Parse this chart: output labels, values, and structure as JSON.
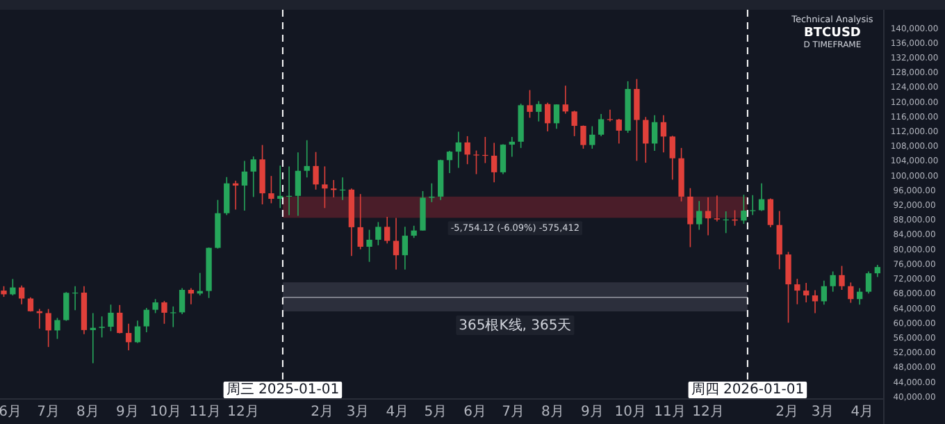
{
  "chart_data": {
    "type": "candlestick",
    "title": "BTCUSD",
    "subtitle": "Technical Analysis",
    "x": [
      "2024-05-27",
      "2024-06-03",
      "2024-06-10",
      "2024-06-17",
      "2024-06-24",
      "2024-07-01",
      "2024-07-08",
      "2024-07-15",
      "2024-07-22",
      "2024-07-29",
      "2024-08-05",
      "2024-08-12",
      "2024-08-19",
      "2024-08-26",
      "2024-09-02",
      "2024-09-09",
      "2024-09-16",
      "2024-09-23",
      "2024-09-30",
      "2024-10-07",
      "2024-10-14",
      "2024-10-21",
      "2024-10-28",
      "2024-11-04",
      "2024-11-11",
      "2024-11-18",
      "2024-11-25",
      "2024-12-02",
      "2024-12-09",
      "2024-12-16",
      "2024-12-23",
      "2024-12-30",
      "2025-01-06",
      "2025-01-13",
      "2025-01-20",
      "2025-01-27",
      "2025-02-03",
      "2025-02-10",
      "2025-02-17",
      "2025-02-24",
      "2025-03-03",
      "2025-03-10",
      "2025-03-17",
      "2025-03-24",
      "2025-03-31",
      "2025-04-07",
      "2025-04-14",
      "2025-04-21",
      "2025-04-28",
      "2025-05-05",
      "2025-05-12",
      "2025-05-19",
      "2025-05-26",
      "2025-06-02",
      "2025-06-09",
      "2025-06-16",
      "2025-06-23",
      "2025-06-30",
      "2025-07-07",
      "2025-07-14",
      "2025-07-21",
      "2025-07-28",
      "2025-08-04",
      "2025-08-11",
      "2025-08-18",
      "2025-08-25",
      "2025-09-01",
      "2025-09-08",
      "2025-09-15",
      "2025-09-22",
      "2025-09-29",
      "2025-10-06",
      "2025-10-13",
      "2025-10-20",
      "2025-10-27",
      "2025-11-03",
      "2025-11-10",
      "2025-11-17",
      "2025-11-24",
      "2025-12-01",
      "2025-12-08",
      "2025-12-15",
      "2025-12-22",
      "2025-12-29",
      "2026-01-05",
      "2026-01-12",
      "2026-01-19",
      "2026-01-26",
      "2026-02-02",
      "2026-02-09",
      "2026-02-16",
      "2026-02-23",
      "2026-03-02",
      "2026-03-09",
      "2026-03-16",
      "2026-03-23",
      "2026-03-30",
      "2026-04-06",
      "2026-04-13"
    ],
    "ohlc": [
      [
        68800,
        70000,
        67100,
        67800
      ],
      [
        67800,
        71950,
        67500,
        69650
      ],
      [
        69650,
        70200,
        65100,
        66650
      ],
      [
        66650,
        67000,
        63100,
        63200
      ],
      [
        63200,
        63800,
        58500,
        62700
      ],
      [
        62700,
        63800,
        53500,
        58000
      ],
      [
        58000,
        61400,
        55700,
        60800
      ],
      [
        60800,
        68400,
        60600,
        68200
      ],
      [
        68200,
        70000,
        63500,
        68250
      ],
      [
        68250,
        70000,
        57000,
        58100
      ],
      [
        58100,
        62700,
        49100,
        58700
      ],
      [
        58700,
        61800,
        56100,
        59000
      ],
      [
        59000,
        65000,
        57800,
        62800
      ],
      [
        62800,
        64900,
        57200,
        57300
      ],
      [
        57300,
        59800,
        52600,
        54800
      ],
      [
        54800,
        60650,
        54600,
        59100
      ],
      [
        59100,
        64100,
        57500,
        63600
      ],
      [
        63600,
        66500,
        62700,
        65600
      ],
      [
        65600,
        66000,
        59800,
        62800
      ],
      [
        62800,
        64500,
        58900,
        62900
      ],
      [
        62900,
        69500,
        62400,
        69000
      ],
      [
        69000,
        69500,
        65100,
        68000
      ],
      [
        68000,
        73600,
        67500,
        68700
      ],
      [
        68700,
        80500,
        66800,
        80400
      ],
      [
        80400,
        93400,
        80200,
        89800
      ],
      [
        89800,
        99600,
        89300,
        97900
      ],
      [
        97900,
        98600,
        90800,
        97300
      ],
      [
        97300,
        104000,
        90500,
        101100
      ],
      [
        101100,
        105200,
        94200,
        104400
      ],
      [
        104400,
        108300,
        92200,
        95200
      ],
      [
        95200,
        99900,
        92500,
        93700
      ],
      [
        93700,
        102700,
        91200,
        94500
      ],
      [
        94500,
        102500,
        89300,
        94500
      ],
      [
        94500,
        106300,
        89100,
        101300
      ],
      [
        101300,
        109600,
        99500,
        102600
      ],
      [
        102600,
        106400,
        96200,
        97600
      ],
      [
        97600,
        102500,
        91200,
        96500
      ],
      [
        96500,
        98800,
        94100,
        96100
      ],
      [
        96100,
        99500,
        93400,
        96200
      ],
      [
        96200,
        96500,
        78200,
        86000
      ],
      [
        86000,
        95000,
        80000,
        80700
      ],
      [
        80700,
        85300,
        76600,
        82600
      ],
      [
        82600,
        87400,
        81100,
        86100
      ],
      [
        86100,
        88800,
        81600,
        82300
      ],
      [
        82300,
        88500,
        74500,
        78400
      ],
      [
        78400,
        86100,
        74500,
        83700
      ],
      [
        83700,
        86400,
        83100,
        85100
      ],
      [
        85100,
        95800,
        85100,
        94000
      ],
      [
        94000,
        97900,
        92800,
        94300
      ],
      [
        94300,
        104300,
        93400,
        104200
      ],
      [
        104200,
        106700,
        100700,
        106500
      ],
      [
        106500,
        111900,
        102100,
        109000
      ],
      [
        109000,
        110700,
        103100,
        105700
      ],
      [
        105700,
        106800,
        100400,
        105600
      ],
      [
        105600,
        110500,
        103400,
        105400
      ],
      [
        105400,
        108900,
        98200,
        100900
      ],
      [
        100900,
        108500,
        100400,
        108400
      ],
      [
        108400,
        110500,
        105100,
        109200
      ],
      [
        109200,
        119500,
        107500,
        119100
      ],
      [
        119100,
        123200,
        115700,
        117300
      ],
      [
        117300,
        120200,
        114700,
        119400
      ],
      [
        119400,
        119800,
        112000,
        114200
      ],
      [
        114200,
        119300,
        112700,
        119300
      ],
      [
        119300,
        124400,
        116800,
        117400
      ],
      [
        117400,
        117600,
        110700,
        113500
      ],
      [
        113500,
        113600,
        107300,
        108300
      ],
      [
        108300,
        113400,
        107300,
        111100
      ],
      [
        111100,
        116700,
        110700,
        115300
      ],
      [
        115300,
        117900,
        114700,
        115200
      ],
      [
        115200,
        115400,
        108700,
        112200
      ],
      [
        112200,
        125600,
        111600,
        123500
      ],
      [
        123500,
        126200,
        104000,
        115100
      ],
      [
        115100,
        115900,
        103500,
        108700
      ],
      [
        108700,
        116400,
        106700,
        114500
      ],
      [
        114500,
        116400,
        106300,
        110600
      ],
      [
        110600,
        110800,
        98900,
        104700
      ],
      [
        104700,
        107500,
        93000,
        94300
      ],
      [
        94300,
        96600,
        80600,
        86800
      ],
      [
        86800,
        93100,
        85300,
        90400
      ],
      [
        90400,
        94100,
        83800,
        88400
      ],
      [
        88400,
        94600,
        87600,
        88100
      ],
      [
        88100,
        90300,
        84400,
        88100
      ],
      [
        88100,
        90600,
        86400,
        87800
      ],
      [
        87800,
        94800,
        86900,
        90500
      ],
      [
        90500,
        94700,
        89300,
        90600
      ],
      [
        90600,
        97900,
        90400,
        93600
      ],
      [
        93600,
        93800,
        86000,
        86600
      ],
      [
        86600,
        90400,
        74600,
        78600
      ],
      [
        78600,
        79300,
        60100,
        70500
      ],
      [
        70500,
        72000,
        65100,
        68800
      ],
      [
        68800,
        70900,
        65600,
        67500
      ],
      [
        67500,
        68900,
        62700,
        65900
      ],
      [
        65900,
        71500,
        65000,
        70000
      ],
      [
        70000,
        74000,
        68500,
        73000
      ],
      [
        73000,
        75500,
        69000,
        70000
      ],
      [
        70000,
        71000,
        65500,
        66500
      ],
      [
        66500,
        69500,
        65000,
        68500
      ],
      [
        68500,
        74000,
        68000,
        73500
      ],
      [
        73500,
        75800,
        72500,
        75200
      ]
    ],
    "xlim": [
      "2024-05-24",
      "2026-04-18"
    ],
    "ylim": [
      39400,
      145000
    ],
    "xticks": [
      {
        "value": "2024-06-01",
        "label": "6月"
      },
      {
        "value": "2024-07-01",
        "label": "7月"
      },
      {
        "value": "2024-08-01",
        "label": "8月"
      },
      {
        "value": "2024-09-01",
        "label": "9月"
      },
      {
        "value": "2024-10-01",
        "label": "10月"
      },
      {
        "value": "2024-11-01",
        "label": "11月"
      },
      {
        "value": "2024-12-01",
        "label": "12月"
      },
      {
        "value": "2025-02-01",
        "label": "2月"
      },
      {
        "value": "2025-03-01",
        "label": "3月"
      },
      {
        "value": "2025-04-01",
        "label": "4月"
      },
      {
        "value": "2025-05-01",
        "label": "5月"
      },
      {
        "value": "2025-06-01",
        "label": "6月"
      },
      {
        "value": "2025-07-01",
        "label": "7月"
      },
      {
        "value": "2025-08-01",
        "label": "8月"
      },
      {
        "value": "2025-09-01",
        "label": "9月"
      },
      {
        "value": "2025-10-01",
        "label": "10月"
      },
      {
        "value": "2025-11-01",
        "label": "11月"
      },
      {
        "value": "2025-12-01",
        "label": "12月"
      },
      {
        "value": "2026-02-01",
        "label": "2月"
      },
      {
        "value": "2026-03-01",
        "label": "3月"
      },
      {
        "value": "2026-04-01",
        "label": "4月"
      }
    ],
    "yticks": [
      {
        "value": 40000,
        "label": "40,000.00"
      },
      {
        "value": 44000,
        "label": "44,000.00"
      },
      {
        "value": 48000,
        "label": "48,000.00"
      },
      {
        "value": 52000,
        "label": "52,000.00"
      },
      {
        "value": 56000,
        "label": "56,000.00"
      },
      {
        "value": 60000,
        "label": "60,000.00"
      },
      {
        "value": 64000,
        "label": "64,000.00"
      },
      {
        "value": 68000,
        "label": "68,000.00"
      },
      {
        "value": 72000,
        "label": "72,000.00"
      },
      {
        "value": 76000,
        "label": "76,000.00"
      },
      {
        "value": 80000,
        "label": "80,000.00"
      },
      {
        "value": 84000,
        "label": "84,000.00"
      },
      {
        "value": 88000,
        "label": "88,000.00"
      },
      {
        "value": 92000,
        "label": "92,000.00"
      },
      {
        "value": 96000,
        "label": "96,000.00"
      },
      {
        "value": 100000,
        "label": "100,000.00"
      },
      {
        "value": 104000,
        "label": "104,000.00"
      },
      {
        "value": 108000,
        "label": "108,000.00"
      },
      {
        "value": 112000,
        "label": "112,000.00"
      },
      {
        "value": 116000,
        "label": "116,000.00"
      },
      {
        "value": 120000,
        "label": "120,000.00"
      },
      {
        "value": 124000,
        "label": "124,000.00"
      },
      {
        "value": 128000,
        "label": "128,000.00"
      },
      {
        "value": 132000,
        "label": "132,000.00"
      },
      {
        "value": 136000,
        "label": "136,000.00"
      },
      {
        "value": 140000,
        "label": "140,000.00"
      }
    ],
    "ref_lines": [
      {
        "axis": "x",
        "value": "2025-01-01",
        "label": "周三 2025-01-01",
        "color": "#ffffff",
        "line_style": "dashed"
      },
      {
        "axis": "x",
        "value": "2026-01-01",
        "label": "周四 2026-01-01",
        "color": "#ffffff",
        "line_style": "dashed"
      },
      {
        "axis": "y",
        "value": 66970,
        "color": "#9598a1"
      }
    ],
    "bands": [
      {
        "axis": "y",
        "from": 88550,
        "to": 94300,
        "color": "#4a1d29"
      },
      {
        "axis": "y",
        "from": 63160,
        "to": 71050,
        "color": "#2c2f3c"
      }
    ],
    "annotations": [
      "D TIMEFRAME",
      "-5,754.12 (-6.09%) -575,412",
      "365根K线, 365天"
    ]
  }
}
